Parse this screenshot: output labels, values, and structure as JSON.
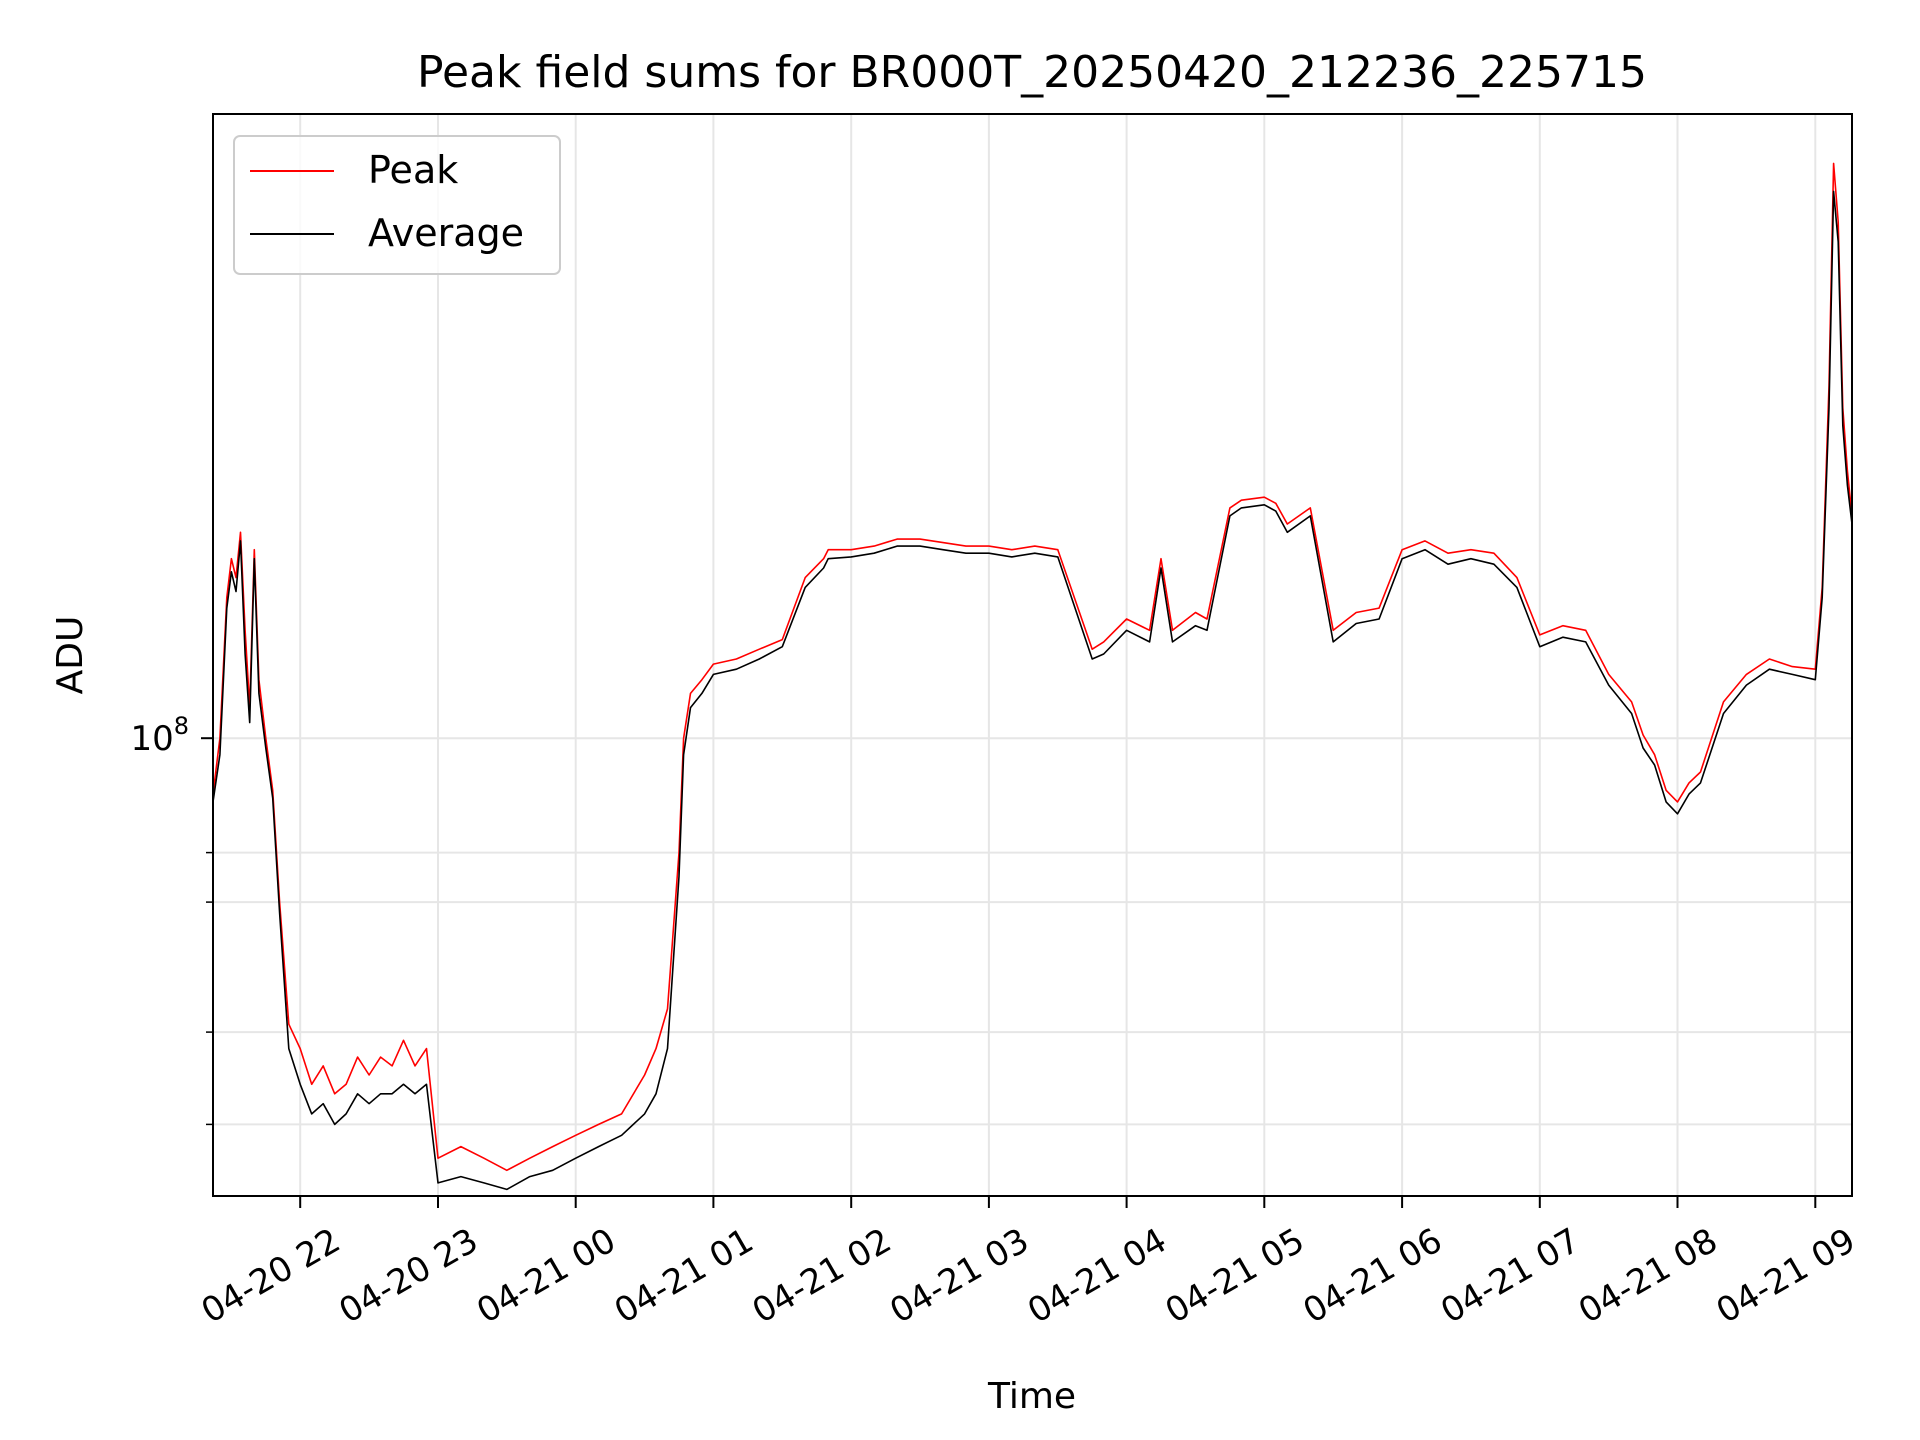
{
  "chart_data": {
    "type": "line",
    "title": "Peak field sums for BR000T_20250420_212236_225715",
    "xlabel": "Time",
    "ylabel": "ADU",
    "y_scale": "log",
    "xlim": [
      "2025-04-20 21:22",
      "2025-04-21 09:16"
    ],
    "ylim": [
      24000000,
      700000000
    ],
    "grid": true,
    "legend_position": "top-left",
    "x_tick_values": [
      "2025-04-20 22:00",
      "2025-04-20 23:00",
      "2025-04-21 00:00",
      "2025-04-21 01:00",
      "2025-04-21 02:00",
      "2025-04-21 03:00",
      "2025-04-21 04:00",
      "2025-04-21 05:00",
      "2025-04-21 06:00",
      "2025-04-21 07:00",
      "2025-04-21 08:00",
      "2025-04-21 09:00"
    ],
    "x_tick_labels": [
      "04-20 22",
      "04-20 23",
      "04-21 00",
      "04-21 01",
      "04-21 02",
      "04-21 03",
      "04-21 04",
      "04-21 05",
      "04-21 06",
      "04-21 07",
      "04-21 08",
      "04-21 09"
    ],
    "y_tick_major": [
      {
        "value": 100000000,
        "base": "10",
        "exp": "8"
      }
    ],
    "y_tick_minor": [
      30000000,
      40000000,
      60000000,
      70000000
    ],
    "series": [
      {
        "name": "Peak",
        "color": "#ff0000",
        "x": [
          "2025-04-20 21:22",
          "2025-04-20 21:25",
          "2025-04-20 21:28",
          "2025-04-20 21:30",
          "2025-04-20 21:32",
          "2025-04-20 21:34",
          "2025-04-20 21:36",
          "2025-04-20 21:38",
          "2025-04-20 21:40",
          "2025-04-20 21:42",
          "2025-04-20 21:45",
          "2025-04-20 21:48",
          "2025-04-20 21:51",
          "2025-04-20 21:55",
          "2025-04-20 22:00",
          "2025-04-20 22:05",
          "2025-04-20 22:10",
          "2025-04-20 22:15",
          "2025-04-20 22:20",
          "2025-04-20 22:25",
          "2025-04-20 22:30",
          "2025-04-20 22:35",
          "2025-04-20 22:40",
          "2025-04-20 22:45",
          "2025-04-20 22:50",
          "2025-04-20 22:55",
          "2025-04-20 23:00",
          "2025-04-20 23:10",
          "2025-04-20 23:20",
          "2025-04-20 23:30",
          "2025-04-20 23:40",
          "2025-04-20 23:50",
          "2025-04-21 00:00",
          "2025-04-21 00:10",
          "2025-04-21 00:20",
          "2025-04-21 00:30",
          "2025-04-21 00:35",
          "2025-04-21 00:40",
          "2025-04-21 00:45",
          "2025-04-21 00:47",
          "2025-04-21 00:50",
          "2025-04-21 00:55",
          "2025-04-21 01:00",
          "2025-04-21 01:10",
          "2025-04-21 01:20",
          "2025-04-21 01:30",
          "2025-04-21 01:40",
          "2025-04-21 01:48",
          "2025-04-21 01:50",
          "2025-04-21 02:00",
          "2025-04-21 02:10",
          "2025-04-21 02:20",
          "2025-04-21 02:30",
          "2025-04-21 02:40",
          "2025-04-21 02:50",
          "2025-04-21 03:00",
          "2025-04-21 03:10",
          "2025-04-21 03:20",
          "2025-04-21 03:30",
          "2025-04-21 03:45",
          "2025-04-21 03:50",
          "2025-04-21 04:00",
          "2025-04-21 04:10",
          "2025-04-21 04:15",
          "2025-04-21 04:20",
          "2025-04-21 04:30",
          "2025-04-21 04:35",
          "2025-04-21 04:45",
          "2025-04-21 04:50",
          "2025-04-21 05:00",
          "2025-04-21 05:05",
          "2025-04-21 05:10",
          "2025-04-21 05:20",
          "2025-04-21 05:30",
          "2025-04-21 05:40",
          "2025-04-21 05:50",
          "2025-04-21 06:00",
          "2025-04-21 06:10",
          "2025-04-21 06:20",
          "2025-04-21 06:30",
          "2025-04-21 06:40",
          "2025-04-21 06:50",
          "2025-04-21 07:00",
          "2025-04-21 07:10",
          "2025-04-21 07:20",
          "2025-04-21 07:30",
          "2025-04-21 07:40",
          "2025-04-21 07:45",
          "2025-04-21 07:50",
          "2025-04-21 07:55",
          "2025-04-21 08:00",
          "2025-04-21 08:05",
          "2025-04-21 08:10",
          "2025-04-21 08:20",
          "2025-04-21 08:30",
          "2025-04-21 08:40",
          "2025-04-21 08:50",
          "2025-04-21 09:00",
          "2025-04-21 09:03",
          "2025-04-21 09:06",
          "2025-04-21 09:08",
          "2025-04-21 09:10",
          "2025-04-21 09:12",
          "2025-04-21 09:14",
          "2025-04-21 09:16"
        ],
        "y": [
          84000000,
          100000000,
          155000000,
          175000000,
          165000000,
          190000000,
          140000000,
          110000000,
          180000000,
          120000000,
          100000000,
          85000000,
          60000000,
          41000000,
          38000000,
          34000000,
          36000000,
          33000000,
          34000000,
          37000000,
          35000000,
          37000000,
          36000000,
          39000000,
          36000000,
          38000000,
          27000000,
          28000000,
          27000000,
          26000000,
          27000000,
          28000000,
          29000000,
          30000000,
          31000000,
          35000000,
          38000000,
          43000000,
          70000000,
          100000000,
          115000000,
          120000000,
          126000000,
          128000000,
          132000000,
          136000000,
          165000000,
          175000000,
          180000000,
          180000000,
          182000000,
          186000000,
          186000000,
          184000000,
          182000000,
          182000000,
          180000000,
          182000000,
          180000000,
          132000000,
          135000000,
          145000000,
          140000000,
          175000000,
          140000000,
          148000000,
          145000000,
          205000000,
          210000000,
          212000000,
          208000000,
          195000000,
          205000000,
          140000000,
          148000000,
          150000000,
          180000000,
          185000000,
          178000000,
          180000000,
          178000000,
          165000000,
          138000000,
          142000000,
          140000000,
          122000000,
          112000000,
          101000000,
          95000000,
          85000000,
          82000000,
          87000000,
          90000000,
          112000000,
          122000000,
          128000000,
          125000000,
          124000000,
          160000000,
          300000000,
          600000000,
          500000000,
          280000000,
          230000000,
          200000000
        ]
      },
      {
        "name": "Average",
        "color": "#000000",
        "x": [
          "2025-04-20 21:22",
          "2025-04-20 21:25",
          "2025-04-20 21:28",
          "2025-04-20 21:30",
          "2025-04-20 21:32",
          "2025-04-20 21:34",
          "2025-04-20 21:36",
          "2025-04-20 21:38",
          "2025-04-20 21:40",
          "2025-04-20 21:42",
          "2025-04-20 21:45",
          "2025-04-20 21:48",
          "2025-04-20 21:51",
          "2025-04-20 21:55",
          "2025-04-20 22:00",
          "2025-04-20 22:05",
          "2025-04-20 22:10",
          "2025-04-20 22:15",
          "2025-04-20 22:20",
          "2025-04-20 22:25",
          "2025-04-20 22:30",
          "2025-04-20 22:35",
          "2025-04-20 22:40",
          "2025-04-20 22:45",
          "2025-04-20 22:50",
          "2025-04-20 22:55",
          "2025-04-20 23:00",
          "2025-04-20 23:10",
          "2025-04-20 23:20",
          "2025-04-20 23:30",
          "2025-04-20 23:40",
          "2025-04-20 23:50",
          "2025-04-21 00:00",
          "2025-04-21 00:10",
          "2025-04-21 00:20",
          "2025-04-21 00:30",
          "2025-04-21 00:35",
          "2025-04-21 00:40",
          "2025-04-21 00:45",
          "2025-04-21 00:47",
          "2025-04-21 00:50",
          "2025-04-21 00:55",
          "2025-04-21 01:00",
          "2025-04-21 01:10",
          "2025-04-21 01:20",
          "2025-04-21 01:30",
          "2025-04-21 01:40",
          "2025-04-21 01:48",
          "2025-04-21 01:50",
          "2025-04-21 02:00",
          "2025-04-21 02:10",
          "2025-04-21 02:20",
          "2025-04-21 02:30",
          "2025-04-21 02:40",
          "2025-04-21 02:50",
          "2025-04-21 03:00",
          "2025-04-21 03:10",
          "2025-04-21 03:20",
          "2025-04-21 03:30",
          "2025-04-21 03:45",
          "2025-04-21 03:50",
          "2025-04-21 04:00",
          "2025-04-21 04:10",
          "2025-04-21 04:15",
          "2025-04-21 04:20",
          "2025-04-21 04:30",
          "2025-04-21 04:35",
          "2025-04-21 04:45",
          "2025-04-21 04:50",
          "2025-04-21 05:00",
          "2025-04-21 05:05",
          "2025-04-21 05:10",
          "2025-04-21 05:20",
          "2025-04-21 05:30",
          "2025-04-21 05:40",
          "2025-04-21 05:50",
          "2025-04-21 06:00",
          "2025-04-21 06:10",
          "2025-04-21 06:20",
          "2025-04-21 06:30",
          "2025-04-21 06:40",
          "2025-04-21 06:50",
          "2025-04-21 07:00",
          "2025-04-21 07:10",
          "2025-04-21 07:20",
          "2025-04-21 07:30",
          "2025-04-21 07:40",
          "2025-04-21 07:45",
          "2025-04-21 07:50",
          "2025-04-21 07:55",
          "2025-04-21 08:00",
          "2025-04-21 08:05",
          "2025-04-21 08:10",
          "2025-04-21 08:20",
          "2025-04-21 08:30",
          "2025-04-21 08:40",
          "2025-04-21 08:50",
          "2025-04-21 09:00",
          "2025-04-21 09:03",
          "2025-04-21 09:06",
          "2025-04-21 09:08",
          "2025-04-21 09:10",
          "2025-04-21 09:12",
          "2025-04-21 09:14",
          "2025-04-21 09:16"
        ],
        "y": [
          82000000,
          95000000,
          150000000,
          168000000,
          158000000,
          185000000,
          130000000,
          105000000,
          175000000,
          115000000,
          97000000,
          83000000,
          58000000,
          38000000,
          34000000,
          31000000,
          32000000,
          30000000,
          31000000,
          33000000,
          32000000,
          33000000,
          33000000,
          34000000,
          33000000,
          34000000,
          25000000,
          25500000,
          25000000,
          24500000,
          25500000,
          26000000,
          27000000,
          28000000,
          29000000,
          31000000,
          33000000,
          38000000,
          65000000,
          95000000,
          110000000,
          115000000,
          122000000,
          124000000,
          128000000,
          133000000,
          160000000,
          170000000,
          175000000,
          176000000,
          178000000,
          182000000,
          182000000,
          180000000,
          178000000,
          178000000,
          176000000,
          178000000,
          176000000,
          128000000,
          130000000,
          140000000,
          135000000,
          170000000,
          135000000,
          142000000,
          140000000,
          200000000,
          205000000,
          207000000,
          203000000,
          190000000,
          200000000,
          135000000,
          143000000,
          145000000,
          175000000,
          180000000,
          172000000,
          175000000,
          172000000,
          160000000,
          133000000,
          137000000,
          135000000,
          118000000,
          108000000,
          97000000,
          92000000,
          82000000,
          79000000,
          84000000,
          87000000,
          108000000,
          118000000,
          124000000,
          122000000,
          120000000,
          155000000,
          280000000,
          550000000,
          470000000,
          265000000,
          220000000,
          195000000
        ]
      }
    ]
  }
}
